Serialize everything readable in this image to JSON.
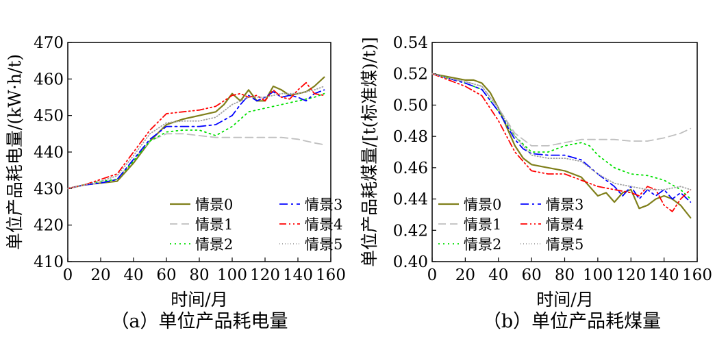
{
  "chart_data": [
    {
      "type": "line",
      "caption": "（a）单位产品耗电量",
      "xlabel": "时间/月",
      "ylabel": "单位产品耗电量/(kW·h/t)",
      "xlim": [
        0,
        160
      ],
      "ylim": [
        410,
        470
      ],
      "xticks": [
        0,
        20,
        40,
        60,
        80,
        100,
        120,
        140,
        160
      ],
      "yticks": [
        410,
        420,
        430,
        440,
        450,
        460,
        470
      ],
      "xtick_labels": [
        "0",
        "20",
        "40",
        "60",
        "80",
        "100",
        "120",
        "140",
        "160"
      ],
      "ytick_labels": [
        "410",
        "420",
        "430",
        "440",
        "450",
        "460",
        "470"
      ],
      "grid": false,
      "legend_position": "bottom-right",
      "series": [
        {
          "name": "情景0",
          "color": "#7f7f1a",
          "style": "solid",
          "x": [
            0,
            10,
            20,
            30,
            40,
            50,
            60,
            70,
            80,
            90,
            95,
            100,
            105,
            110,
            115,
            120,
            125,
            130,
            135,
            140,
            145,
            150,
            156
          ],
          "y": [
            430,
            431,
            431.5,
            432,
            437,
            443,
            447.5,
            449,
            450,
            451,
            453,
            456,
            454,
            457,
            454,
            454,
            458,
            457,
            455.5,
            456,
            456.5,
            458,
            460.5
          ]
        },
        {
          "name": "情景1",
          "color": "#bfbfbf",
          "style": "dashed",
          "x": [
            0,
            10,
            20,
            30,
            40,
            50,
            60,
            70,
            80,
            90,
            100,
            110,
            120,
            130,
            140,
            150,
            156
          ],
          "y": [
            430,
            431,
            431.5,
            432.5,
            438,
            443,
            445,
            445,
            444.5,
            444,
            444,
            444,
            444,
            444,
            443.5,
            442.5,
            442
          ]
        },
        {
          "name": "情景2",
          "color": "#00e000",
          "style": "dotted",
          "x": [
            0,
            10,
            20,
            30,
            40,
            50,
            60,
            70,
            80,
            90,
            100,
            110,
            120,
            130,
            140,
            150,
            156
          ],
          "y": [
            430,
            431,
            432,
            432.5,
            437.5,
            443,
            445.5,
            446,
            446,
            444.5,
            447,
            451,
            452,
            453,
            454,
            455,
            456
          ]
        },
        {
          "name": "情景3",
          "color": "#0000ff",
          "style": "dashdot",
          "x": [
            0,
            10,
            20,
            30,
            40,
            50,
            60,
            70,
            80,
            90,
            100,
            105,
            110,
            115,
            120,
            125,
            130,
            135,
            140,
            145,
            150,
            156
          ],
          "y": [
            430,
            431,
            431.5,
            432.5,
            438,
            443.5,
            447,
            447,
            447,
            447.5,
            450,
            453,
            455.5,
            454,
            455,
            456.5,
            455,
            455.5,
            455,
            454,
            456,
            457
          ]
        },
        {
          "name": "情景4",
          "color": "#ff0000",
          "style": "dashdotdot",
          "x": [
            0,
            10,
            20,
            30,
            40,
            50,
            60,
            70,
            80,
            90,
            95,
            100,
            105,
            110,
            115,
            120,
            125,
            130,
            135,
            140,
            145,
            150,
            156
          ],
          "y": [
            430,
            431,
            432.5,
            434,
            440,
            446,
            450.5,
            451,
            451.5,
            452.5,
            454,
            455.5,
            456,
            455,
            455.5,
            454,
            457,
            455,
            454.5,
            457,
            459,
            456,
            455.5
          ]
        },
        {
          "name": "情景5",
          "color": "#a0a0a0",
          "style": "dotted-fine",
          "x": [
            0,
            10,
            20,
            30,
            40,
            50,
            60,
            70,
            80,
            90,
            100,
            110,
            120,
            130,
            140,
            150,
            156
          ],
          "y": [
            430,
            431,
            432,
            433.5,
            439,
            445,
            448,
            448.5,
            448.5,
            449.5,
            453,
            455,
            455,
            456,
            456,
            457,
            458
          ]
        }
      ]
    },
    {
      "type": "line",
      "caption": "（b）单位产品耗煤量",
      "xlabel": "时间/月",
      "ylabel": "单位产品耗煤量/[t(标准煤)/t)]",
      "xlim": [
        0,
        160
      ],
      "ylim": [
        0.4,
        0.54
      ],
      "xticks": [
        0,
        20,
        40,
        60,
        80,
        100,
        120,
        140,
        160
      ],
      "yticks": [
        0.4,
        0.42,
        0.44,
        0.46,
        0.48,
        0.5,
        0.52,
        0.54
      ],
      "xtick_labels": [
        "0",
        "20",
        "40",
        "60",
        "80",
        "100",
        "120",
        "140",
        "160"
      ],
      "ytick_labels": [
        "0.40",
        "0.42",
        "0.44",
        "0.46",
        "0.48",
        "0.50",
        "0.52",
        "0.54"
      ],
      "grid": false,
      "legend_position": "bottom-left",
      "series": [
        {
          "name": "情景0",
          "color": "#7f7f1a",
          "style": "solid",
          "x": [
            0,
            10,
            20,
            25,
            30,
            35,
            40,
            45,
            50,
            55,
            60,
            70,
            80,
            90,
            95,
            100,
            105,
            110,
            115,
            120,
            125,
            130,
            135,
            140,
            145,
            150,
            156
          ],
          "y": [
            0.52,
            0.518,
            0.516,
            0.516,
            0.514,
            0.508,
            0.498,
            0.486,
            0.474,
            0.466,
            0.462,
            0.46,
            0.458,
            0.454,
            0.448,
            0.442,
            0.444,
            0.438,
            0.444,
            0.446,
            0.434,
            0.436,
            0.44,
            0.442,
            0.44,
            0.436,
            0.428
          ]
        },
        {
          "name": "情景1",
          "color": "#bfbfbf",
          "style": "dashed",
          "x": [
            0,
            10,
            20,
            30,
            40,
            50,
            60,
            70,
            80,
            90,
            100,
            110,
            120,
            130,
            140,
            150,
            156
          ],
          "y": [
            0.52,
            0.517,
            0.515,
            0.512,
            0.498,
            0.482,
            0.474,
            0.474,
            0.476,
            0.478,
            0.478,
            0.478,
            0.477,
            0.477,
            0.479,
            0.482,
            0.485
          ]
        },
        {
          "name": "情景2",
          "color": "#00e000",
          "style": "dotted",
          "x": [
            0,
            10,
            20,
            30,
            40,
            50,
            60,
            70,
            80,
            90,
            95,
            100,
            110,
            120,
            130,
            140,
            150,
            156
          ],
          "y": [
            0.52,
            0.517,
            0.514,
            0.51,
            0.496,
            0.48,
            0.47,
            0.47,
            0.474,
            0.476,
            0.474,
            0.468,
            0.46,
            0.456,
            0.455,
            0.452,
            0.446,
            0.44
          ]
        },
        {
          "name": "情景3",
          "color": "#0000ff",
          "style": "dashdot",
          "x": [
            0,
            10,
            20,
            30,
            40,
            50,
            55,
            60,
            70,
            80,
            90,
            100,
            110,
            115,
            120,
            125,
            130,
            135,
            140,
            145,
            150,
            156
          ],
          "y": [
            0.52,
            0.517,
            0.514,
            0.51,
            0.496,
            0.478,
            0.472,
            0.469,
            0.468,
            0.468,
            0.465,
            0.456,
            0.448,
            0.442,
            0.448,
            0.44,
            0.446,
            0.442,
            0.446,
            0.44,
            0.444,
            0.438
          ]
        },
        {
          "name": "情景4",
          "color": "#ff0000",
          "style": "dashdotdot",
          "x": [
            0,
            10,
            20,
            30,
            40,
            50,
            60,
            70,
            80,
            90,
            100,
            110,
            120,
            125,
            130,
            135,
            140,
            145,
            150,
            156
          ],
          "y": [
            0.52,
            0.516,
            0.512,
            0.506,
            0.49,
            0.47,
            0.458,
            0.456,
            0.456,
            0.452,
            0.448,
            0.446,
            0.444,
            0.442,
            0.448,
            0.446,
            0.436,
            0.432,
            0.44,
            0.446
          ]
        },
        {
          "name": "情景5",
          "color": "#a0a0a0",
          "style": "dotted-fine",
          "x": [
            0,
            10,
            20,
            30,
            40,
            50,
            60,
            70,
            80,
            90,
            100,
            110,
            120,
            130,
            140,
            150,
            156
          ],
          "y": [
            0.52,
            0.517,
            0.515,
            0.512,
            0.498,
            0.48,
            0.468,
            0.466,
            0.466,
            0.464,
            0.456,
            0.45,
            0.448,
            0.446,
            0.446,
            0.448,
            0.446
          ]
        }
      ]
    }
  ]
}
